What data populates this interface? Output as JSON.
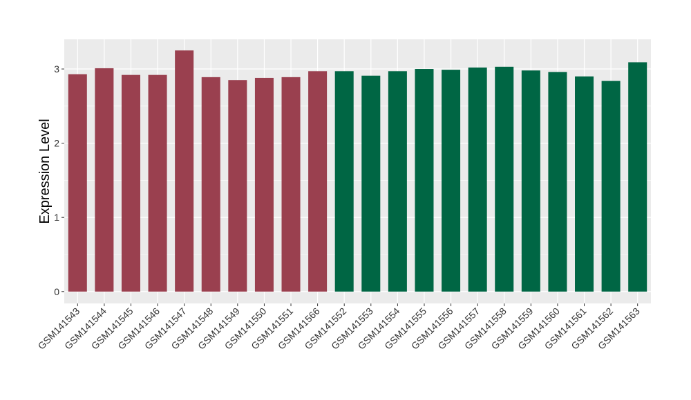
{
  "chart_data": {
    "type": "bar",
    "title": "",
    "xlabel": "",
    "ylabel": "Expression Level",
    "ylim": [
      -0.16,
      3.4
    ],
    "yticks": [
      0,
      1,
      2,
      3
    ],
    "grid": true,
    "legend": "none",
    "categories": [
      "GSM141543",
      "GSM141544",
      "GSM141545",
      "GSM141546",
      "GSM141547",
      "GSM141548",
      "GSM141549",
      "GSM141550",
      "GSM141551",
      "GSM141566",
      "GSM141552",
      "GSM141553",
      "GSM141554",
      "GSM141555",
      "GSM141556",
      "GSM141557",
      "GSM141558",
      "GSM141559",
      "GSM141560",
      "GSM141561",
      "GSM141562",
      "GSM141563"
    ],
    "values": [
      2.93,
      3.01,
      2.92,
      2.92,
      3.25,
      2.89,
      2.85,
      2.88,
      2.89,
      2.97,
      2.97,
      2.91,
      2.97,
      3.0,
      2.99,
      3.02,
      3.03,
      2.98,
      2.96,
      2.9,
      2.84,
      3.09
    ],
    "groups": [
      0,
      0,
      0,
      0,
      0,
      0,
      0,
      0,
      0,
      0,
      1,
      1,
      1,
      1,
      1,
      1,
      1,
      1,
      1,
      1,
      1,
      1
    ],
    "group_colors": [
      "#9a404f",
      "#006644"
    ],
    "panel_background": "#ebebeb",
    "gridline_color": "#ffffff"
  }
}
